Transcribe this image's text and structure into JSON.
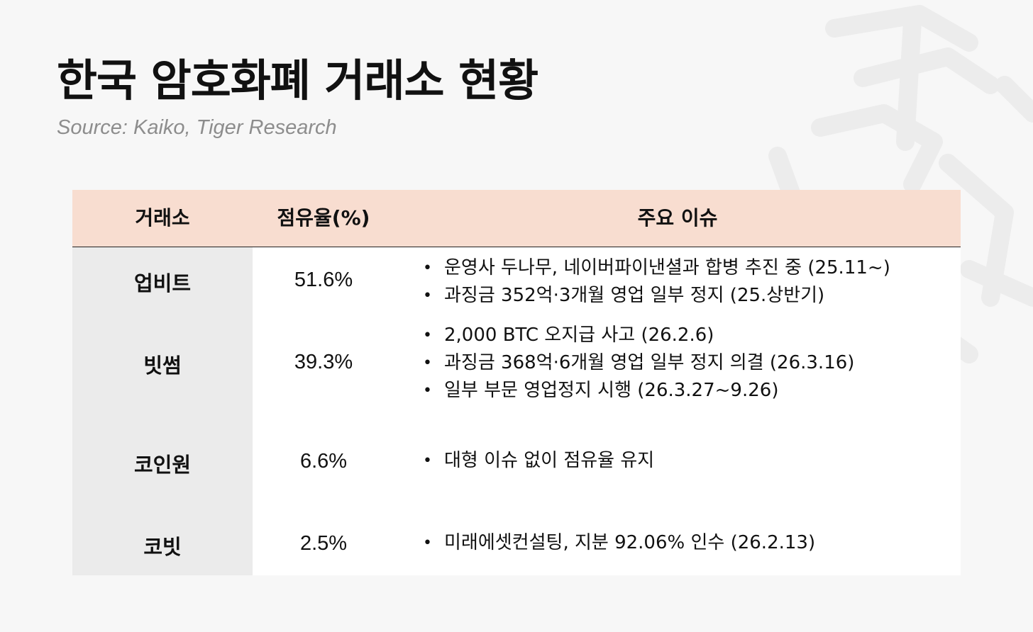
{
  "title": "한국 암호화폐 거래소 현황",
  "source": "Source: Kaiko, Tiger Research",
  "table": {
    "headers": [
      "거래소",
      "점유율(%)",
      "주요 이슈"
    ],
    "rows": [
      {
        "name": "업비트",
        "share": "51.6%",
        "issues": [
          "운영사 두나무, 네이버파이낸셜과 합병 추진 중 (25.11~)",
          "과징금 352억·3개월 영업 일부 정지 (25.상반기)"
        ]
      },
      {
        "name": "빗썸",
        "share": "39.3%",
        "issues": [
          "2,000 BTC 오지급 사고 (26.2.6)",
          "과징금 368억·6개월 영업 일부 정지 의결 (26.3.16)",
          "일부 부문 영업정지 시행 (26.3.27~9.26)"
        ]
      },
      {
        "name": "코인원",
        "share": "6.6%",
        "issues": [
          "대형 이슈 없이 점유율 유지"
        ]
      },
      {
        "name": "코빗",
        "share": "2.5%",
        "issues": [
          "미래에셋컨설팅, 지분 92.06% 인수 (26.2.13)"
        ]
      }
    ]
  },
  "bullet_glyph": "•",
  "colors": {
    "background": "#f7f7f7",
    "header_bg": "#f8ddd0",
    "name_col_bg": "#ebebeb",
    "source_text": "#8d8d8d"
  }
}
